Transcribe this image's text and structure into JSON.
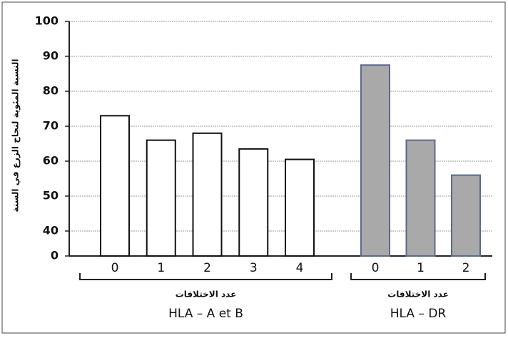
{
  "chart_data": {
    "type": "bar",
    "y_label": "النسبة المئوية لنجاح الزرع في السنة",
    "ylim": [
      0,
      100
    ],
    "y_break": [
      0,
      40
    ],
    "yticks": [
      0,
      40,
      50,
      60,
      70,
      80,
      90,
      100
    ],
    "grid": true,
    "groups": [
      {
        "label": "HLA – A et B",
        "sublabel": "عدد الاختلافات",
        "color": "#ffffff",
        "edge": "#111111",
        "categories": [
          "0",
          "1",
          "2",
          "3",
          "4"
        ],
        "values": [
          73,
          66,
          68,
          63.5,
          60.5
        ]
      },
      {
        "label": "HLA – DR",
        "sublabel": "عدد الاختلافات",
        "color": "#a9a9a9",
        "edge": "#5a6a8a",
        "categories": [
          "0",
          "1",
          "2"
        ],
        "values": [
          87.5,
          66,
          56
        ]
      }
    ]
  }
}
